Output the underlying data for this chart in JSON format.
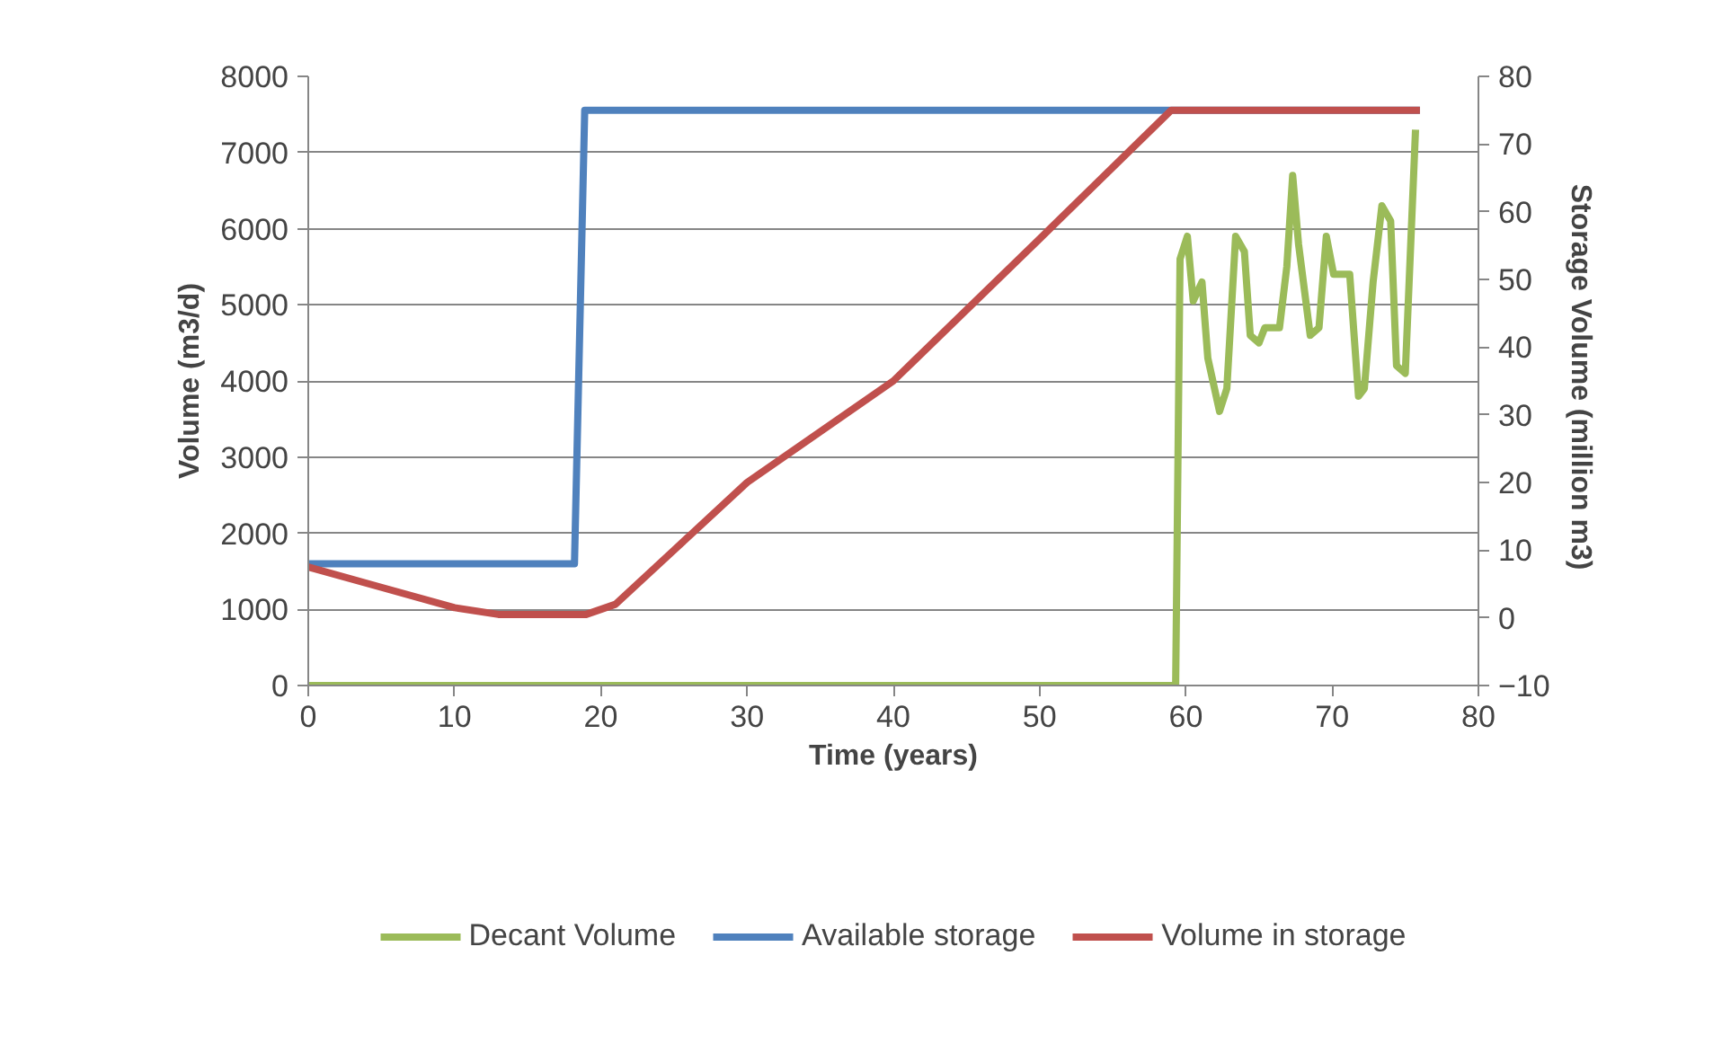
{
  "chart_data": {
    "type": "line",
    "xlabel": "Time (years)",
    "ylabel": "Volume (m3/d)",
    "y2label": "Storage Volume  (million m3)",
    "xlim": [
      0,
      80
    ],
    "xticks": [
      0,
      10,
      20,
      30,
      40,
      50,
      60,
      70,
      80
    ],
    "ylim": [
      0,
      8000
    ],
    "yticks": [
      0,
      1000,
      2000,
      3000,
      4000,
      5000,
      6000,
      7000,
      8000
    ],
    "y2lim": [
      -10,
      80
    ],
    "y2ticks": [
      -10,
      0,
      10,
      20,
      30,
      40,
      50,
      60,
      70,
      80
    ],
    "grid": "y",
    "legend": "bottom",
    "marker": "none",
    "line_style": "solid",
    "series": [
      {
        "name": "Decant Volume",
        "color": "#9bbb59",
        "x": [
          0,
          59.3,
          59.6,
          60.1,
          60.5,
          61.1,
          61.5,
          62.3,
          62.8,
          63.4,
          64.0,
          64.4,
          65.0,
          65.4,
          66.4,
          66.9,
          67.3,
          67.7,
          68.5,
          69.1,
          69.6,
          70.1,
          71.2,
          71.8,
          72.2,
          72.8,
          73.4,
          74.0,
          74.4,
          75.0,
          75.7
        ],
        "values": [
          0,
          0,
          5600,
          5900,
          5050,
          5300,
          4300,
          3600,
          3900,
          5900,
          5700,
          4600,
          4500,
          4700,
          4700,
          5500,
          6700,
          5800,
          4600,
          4700,
          5900,
          5400,
          5400,
          3800,
          3900,
          5300,
          6300,
          6100,
          4200,
          4100,
          7300
        ]
      },
      {
        "name": "Available storage",
        "color": "#4f81bd",
        "axis": "y2",
        "x": [
          0,
          18.2,
          18.9,
          76
        ],
        "values": [
          8,
          8,
          75,
          75
        ]
      },
      {
        "name": "Volume in storage",
        "color": "#c0504d",
        "axis": "y2",
        "x": [
          0,
          5,
          10,
          13,
          19,
          21,
          25,
          30,
          40,
          50,
          59,
          76
        ],
        "values": [
          7.5,
          4.5,
          1.5,
          0.5,
          0.5,
          2,
          10,
          20,
          35,
          56,
          75,
          75
        ]
      }
    ]
  }
}
